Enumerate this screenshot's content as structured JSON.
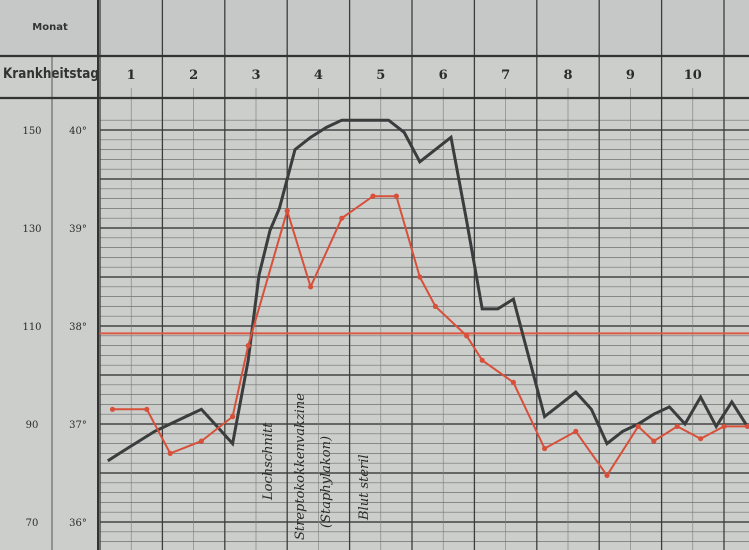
{
  "chart_data": {
    "type": "line",
    "header": {
      "row1_label": "Monat",
      "row2_label": "Krankheitstag"
    },
    "days": [
      "1",
      "2",
      "3",
      "4",
      "5",
      "6",
      "7",
      "8",
      "9",
      "10",
      "1"
    ],
    "pulse_ticks": [
      "150",
      "130",
      "110",
      "90",
      "70"
    ],
    "temp_ticks": [
      "40°",
      "39°",
      "38°",
      "37°",
      "36°"
    ],
    "pulse_axis": {
      "min": 70,
      "max": 150
    },
    "temp_axis": {
      "min": 36,
      "max": 40
    },
    "series": [
      {
        "color": "#3a3d3d",
        "x": [
          0.25,
          0.75,
          1.25,
          1.75,
          2.25,
          2.75,
          3.25,
          3.75,
          4.25,
          4.75,
          5.1,
          5.45,
          5.75,
          6.25,
          6.75,
          7.25,
          7.75,
          8.25,
          8.75,
          9.25,
          9.75,
          10.25,
          10.75,
          11.25,
          11.75,
          12.25,
          12.75,
          13.25,
          13.75,
          14.25,
          14.75,
          15.25,
          15.75,
          16.25,
          16.75,
          17.25,
          17.75,
          18.25,
          18.75,
          19.25,
          19.75,
          20.25,
          20.75
        ],
        "y": [
          82.5,
          84.5,
          86.5,
          88.5,
          90.0,
          91.5,
          93.0,
          89.5,
          86.0,
          103.0,
          120.5,
          129.5,
          134.0,
          146.0,
          148.5,
          150.5,
          152.0,
          152.0,
          152.0,
          152.0,
          149.5,
          143.5,
          146.0,
          148.5,
          131.5,
          113.5,
          113.5,
          115.5,
          103.5,
          91.5,
          94.0,
          96.5,
          93.0,
          86.0,
          88.5,
          90.0,
          92.0,
          93.5,
          90.0,
          95.5,
          89.5,
          94.5,
          89.5
        ]
      },
      {
        "color": "#d8503a",
        "x": [
          0.4,
          1.5,
          2.25,
          3.25,
          4.25,
          4.75,
          6.0,
          6.75,
          7.75,
          8.75,
          9.5,
          10.25,
          10.75,
          11.75,
          12.25,
          13.25,
          14.25,
          15.25,
          16.25,
          17.25,
          17.75,
          18.5,
          19.25,
          20.0,
          20.75
        ],
        "y": [
          93.0,
          93.0,
          84.0,
          86.5,
          91.5,
          106.0,
          133.5,
          118.0,
          132.0,
          136.5,
          136.5,
          120.0,
          114.0,
          108.0,
          103.0,
          98.5,
          85.0,
          88.5,
          79.5,
          89.5,
          86.5,
          89.5,
          87.0,
          89.5,
          89.5
        ]
      }
    ],
    "reference_line": {
      "value": 108.5,
      "color": "#dc5a45"
    },
    "annotations": [
      "Lochschnitt",
      "Streptokokkenvakzine",
      "(Staphylakon)",
      "Blut steril"
    ]
  }
}
